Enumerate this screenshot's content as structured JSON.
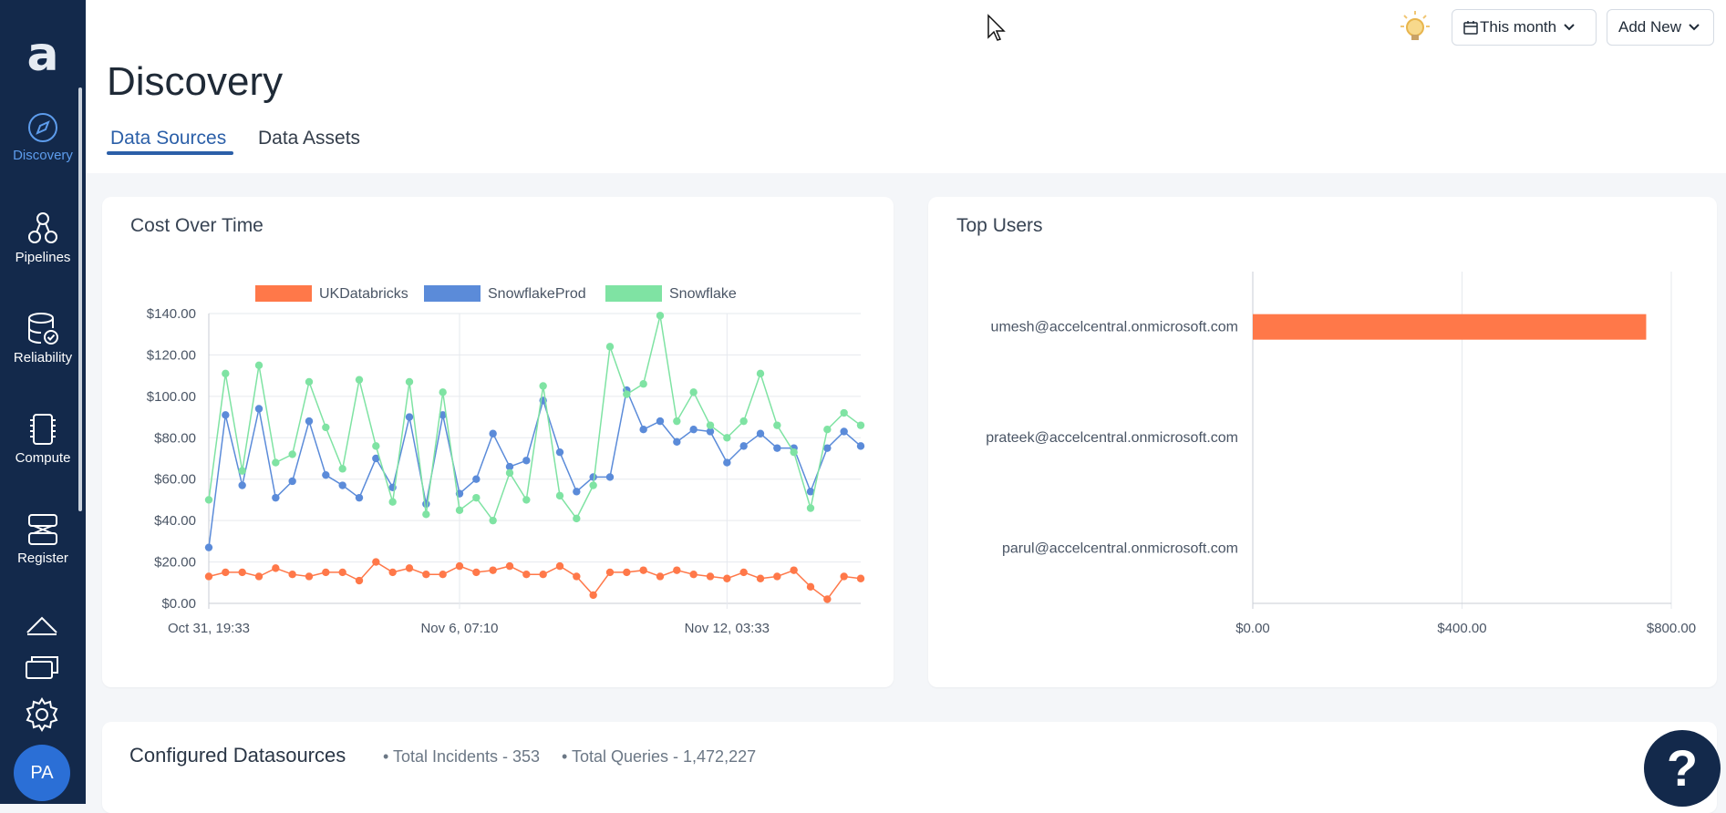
{
  "sidebar": {
    "logo": "a",
    "items": [
      {
        "label": "Discovery",
        "icon": "compass-icon"
      },
      {
        "label": "Pipelines",
        "icon": "pipelines-icon"
      },
      {
        "label": "Reliability",
        "icon": "database-check-icon"
      },
      {
        "label": "Compute",
        "icon": "chip-icon"
      },
      {
        "label": "Register",
        "icon": "register-icon"
      }
    ],
    "extra_icons": [
      "upload-icon",
      "cards-icon",
      "gear-icon"
    ],
    "avatar": "PA"
  },
  "header": {
    "title": "Discovery",
    "tabs": [
      {
        "label": "Data Sources",
        "active": true
      },
      {
        "label": "Data Assets",
        "active": false
      }
    ],
    "date_filter": "This month",
    "add_new": "Add New"
  },
  "cost_card": {
    "title": "Cost Over Time"
  },
  "users_card": {
    "title": "Top Users"
  },
  "configured": {
    "title": "Configured Datasources",
    "incidents": "• Total Incidents - 353",
    "queries": "• Total Queries - 1,472,227"
  },
  "help": "?",
  "colors": {
    "sidebar": "#13294b",
    "accent": "#2b5fa8",
    "ukdatabricks": "#ff7849",
    "snowflakeprod": "#5b8bd9",
    "snowflake": "#7fe3a3"
  },
  "chart_data": [
    {
      "type": "line",
      "title": "Cost Over Time",
      "x_tick_labels": [
        "Oct 31, 19:33",
        "Nov 6, 07:10",
        "Nov 12, 03:33"
      ],
      "x_tick_index": [
        0,
        15,
        31
      ],
      "y_tick_labels": [
        "$0.00",
        "$20.00",
        "$40.00",
        "$60.00",
        "$80.00",
        "$100.00",
        "$120.00",
        "$140.00"
      ],
      "ylim": [
        0,
        140
      ],
      "grid": true,
      "legend": "top",
      "series": [
        {
          "name": "UKDatabricks",
          "color": "#ff7849",
          "values": [
            13,
            15,
            15,
            13,
            17,
            14,
            13,
            15,
            15,
            11,
            20,
            15,
            17,
            14,
            14,
            18,
            15,
            16,
            18,
            14,
            14,
            18,
            13,
            4,
            15,
            15,
            16,
            13,
            16,
            14,
            13,
            12,
            15,
            12,
            13,
            16,
            8,
            2,
            13,
            12
          ]
        },
        {
          "name": "SnowflakeProd",
          "color": "#5b8bd9",
          "values": [
            27,
            91,
            57,
            94,
            51,
            59,
            88,
            62,
            57,
            51,
            70,
            56,
            90,
            48,
            91,
            53,
            60,
            82,
            66,
            69,
            98,
            73,
            54,
            61,
            61,
            103,
            84,
            88,
            78,
            84,
            83,
            68,
            76,
            82,
            75,
            75,
            54,
            75,
            83,
            76
          ]
        },
        {
          "name": "Snowflake",
          "color": "#7fe3a3",
          "values": [
            50,
            111,
            64,
            115,
            68,
            72,
            107,
            85,
            65,
            108,
            76,
            49,
            107,
            43,
            102,
            45,
            51,
            40,
            63,
            50,
            105,
            52,
            41,
            57,
            124,
            101,
            106,
            139,
            88,
            102,
            86,
            80,
            88,
            111,
            86,
            73,
            46,
            84,
            92,
            86
          ]
        }
      ]
    },
    {
      "type": "bar",
      "title": "Top Users",
      "orientation": "horizontal",
      "categories": [
        "umesh@accelcentral.onmicrosoft.com",
        "prateek@accelcentral.onmicrosoft.com",
        "parul@accelcentral.onmicrosoft.com"
      ],
      "values": [
        752,
        0,
        0
      ],
      "x_tick_labels": [
        "$0.00",
        "$400.00",
        "$800.00"
      ],
      "xlim": [
        0,
        800
      ],
      "color": "#ff7849",
      "grid": true
    }
  ]
}
